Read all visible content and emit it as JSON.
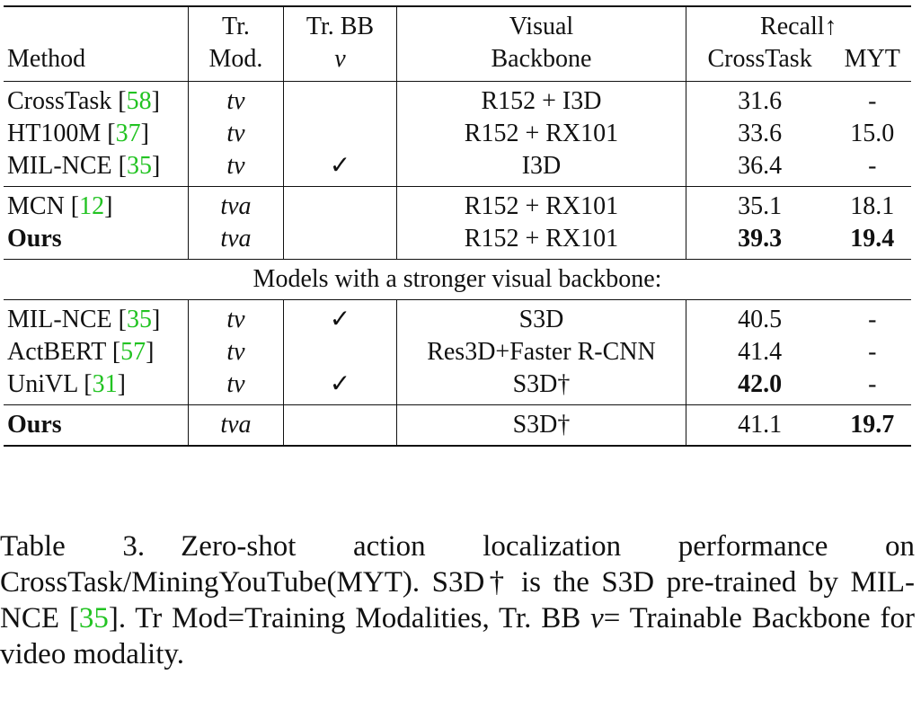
{
  "table": {
    "header": {
      "method": "Method",
      "tr_mod_line1": "Tr.",
      "tr_mod_line2": "Mod.",
      "tr_bb_line1": "Tr. BB",
      "tr_bb_line2": "v",
      "visual_line1": "Visual",
      "visual_line2": "Backbone",
      "recall": "Recall↑",
      "crosstask": "CrossTask",
      "myt": "MYT"
    },
    "group1": [
      {
        "method": "CrossTask",
        "cite": "58",
        "mod": "tv",
        "bb": "",
        "visual": "R152 + I3D",
        "crosstask": "31.6",
        "myt": "-"
      },
      {
        "method": "HT100M",
        "cite": "37",
        "mod": "tv",
        "bb": "",
        "visual": "R152 + RX101",
        "crosstask": "33.6",
        "myt": "15.0"
      },
      {
        "method": "MIL-NCE",
        "cite": "35",
        "mod": "tv",
        "bb": "✓",
        "visual": "I3D",
        "crosstask": "36.4",
        "myt": "-"
      }
    ],
    "group2": [
      {
        "method": "MCN",
        "cite": "12",
        "mod": "tva",
        "bb": "",
        "visual": "R152 + RX101",
        "crosstask": "35.1",
        "myt": "18.1"
      },
      {
        "method": "Ours",
        "cite": "",
        "mod": "tva",
        "bb": "",
        "visual": "R152 + RX101",
        "crosstask": "39.3",
        "myt": "19.4"
      }
    ],
    "section_label": "Models with a stronger visual backbone:",
    "group3": [
      {
        "method": "MIL-NCE",
        "cite": "35",
        "mod": "tv",
        "bb": "✓",
        "visual": "S3D",
        "crosstask": "40.5",
        "myt": "-"
      },
      {
        "method": "ActBERT",
        "cite": "57",
        "mod": "tv",
        "bb": "",
        "visual": "Res3D+Faster R-CNN",
        "crosstask": "41.4",
        "myt": "-"
      },
      {
        "method": "UniVL",
        "cite": "31",
        "mod": "tv",
        "bb": "✓",
        "visual": "S3D†",
        "crosstask": "42.0",
        "myt": "-"
      }
    ],
    "group4": [
      {
        "method": "Ours",
        "cite": "",
        "mod": "tva",
        "bb": "",
        "visual": "S3D†",
        "crosstask": "41.1",
        "myt": "19.7"
      }
    ]
  },
  "caption": {
    "label": "Table 3.",
    "text_part1": "Zero-shot action localization performance on CrossTask/MiningYouTube(MYT). S3D† is the S3D pre-trained by MIL-NCE [",
    "cite": "35",
    "text_part2": "]. Tr Mod=Training Modalities, Tr. BB ",
    "v": "v",
    "text_part3": "= Trainable Backbone for video modality."
  }
}
